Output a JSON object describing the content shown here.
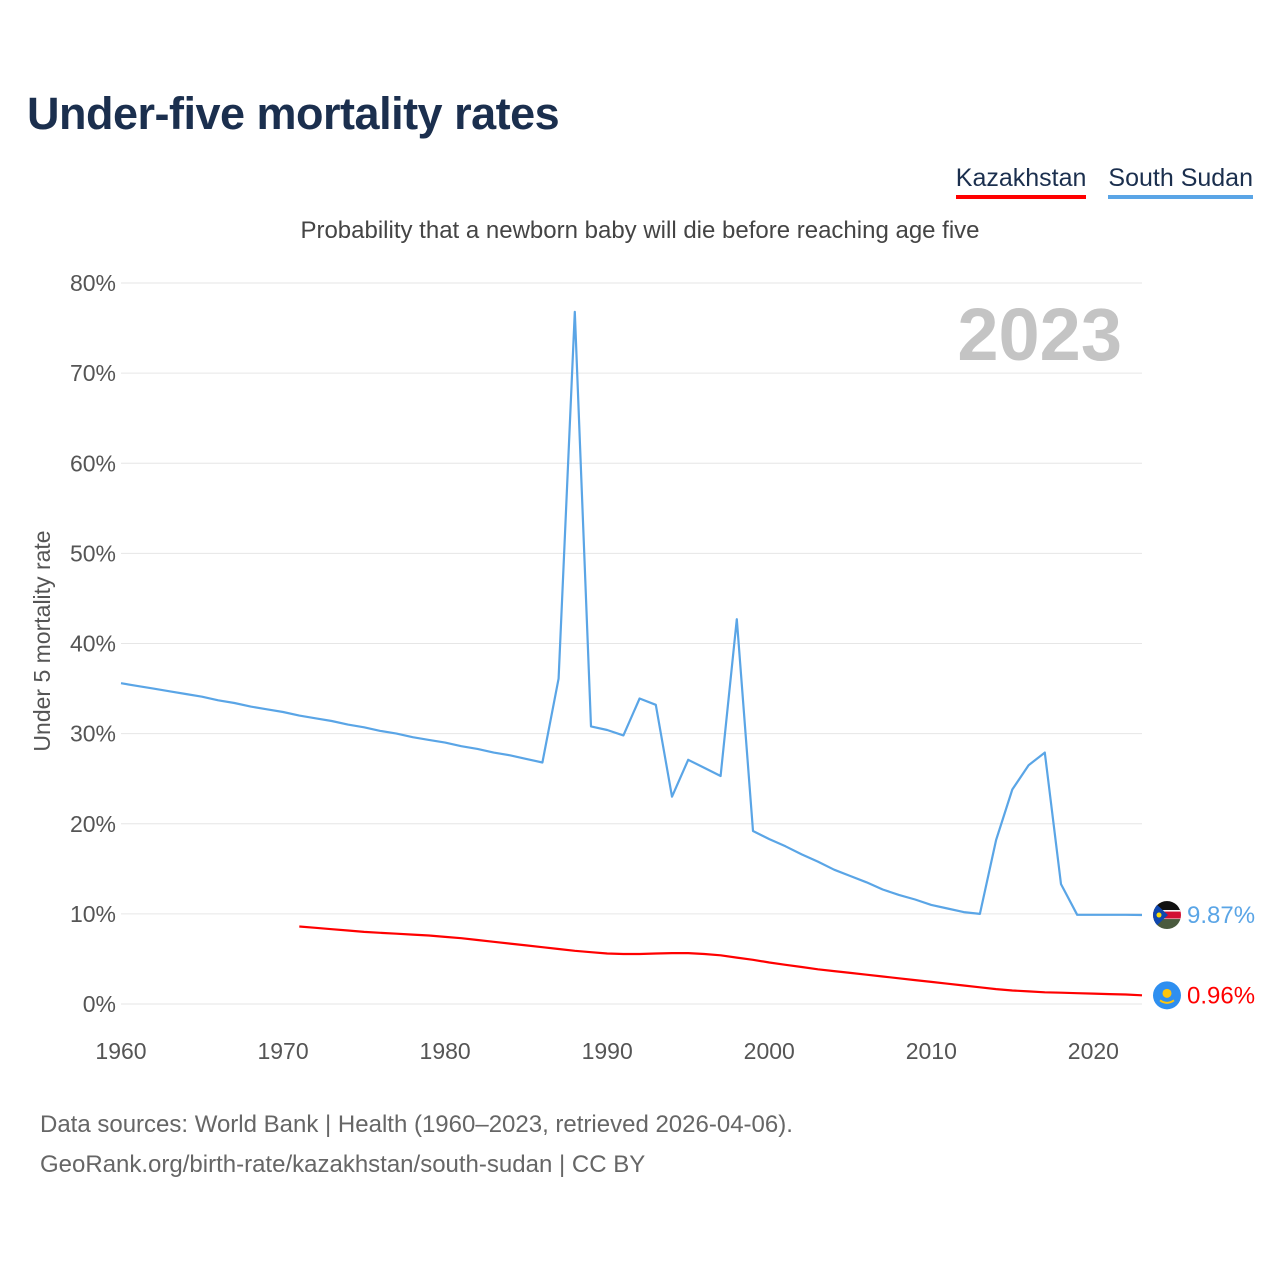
{
  "title": "Under-five mortality rates",
  "subtitle": "Probability that a newborn baby will die before reaching age five",
  "legend": [
    {
      "name": "Kazakhstan",
      "color": "#ff0000"
    },
    {
      "name": "South Sudan",
      "color": "#5aa5e6"
    }
  ],
  "footer": {
    "line1": "Data sources: World Bank | Health (1960–2023, retrieved 2026-04-06).",
    "line2": "GeoRank.org/birth-rate/kazakhstan/south-sudan | CC BY"
  },
  "chart_data": {
    "type": "line",
    "title": "Under-five mortality rates",
    "ylabel": "Under 5 mortality rate",
    "xlabel": "",
    "xlim": [
      1960,
      2023
    ],
    "ylim": [
      0,
      80
    ],
    "y_ticks": [
      0,
      10,
      20,
      30,
      40,
      50,
      60,
      70,
      80
    ],
    "y_tick_labels": [
      "0%",
      "10%",
      "20%",
      "30%",
      "40%",
      "50%",
      "60%",
      "70%",
      "80%"
    ],
    "x_ticks": [
      1960,
      1970,
      1980,
      1990,
      2000,
      2010,
      2020
    ],
    "x_tick_labels": [
      "1960",
      "1970",
      "1980",
      "1990",
      "2000",
      "2010",
      "2020"
    ],
    "year_label": "2023",
    "grid": true,
    "series": [
      {
        "name": "South Sudan",
        "color": "#5aa5e6",
        "end_label": "9.87%",
        "flag": "south-sudan-flag",
        "x": [
          1960,
          1961,
          1962,
          1963,
          1964,
          1965,
          1966,
          1967,
          1968,
          1969,
          1970,
          1971,
          1972,
          1973,
          1974,
          1975,
          1976,
          1977,
          1978,
          1979,
          1980,
          1981,
          1982,
          1983,
          1984,
          1985,
          1986,
          1987,
          1988,
          1989,
          1990,
          1991,
          1992,
          1993,
          1994,
          1995,
          1996,
          1997,
          1998,
          1999,
          2000,
          2001,
          2002,
          2003,
          2004,
          2005,
          2006,
          2007,
          2008,
          2009,
          2010,
          2011,
          2012,
          2013,
          2014,
          2015,
          2016,
          2017,
          2018,
          2019,
          2020,
          2021,
          2022,
          2023
        ],
        "values": [
          35.6,
          35.3,
          35.0,
          34.7,
          34.4,
          34.1,
          33.7,
          33.4,
          33.0,
          32.7,
          32.4,
          32.0,
          31.7,
          31.4,
          31.0,
          30.7,
          30.3,
          30.0,
          29.6,
          29.3,
          29.0,
          28.6,
          28.3,
          27.9,
          27.6,
          27.2,
          26.8,
          36.1,
          76.8,
          30.8,
          30.4,
          29.8,
          33.9,
          33.2,
          23.0,
          27.1,
          26.2,
          25.3,
          42.7,
          19.2,
          18.3,
          17.5,
          16.6,
          15.8,
          14.9,
          14.2,
          13.5,
          12.7,
          12.1,
          11.6,
          11.0,
          10.6,
          10.2,
          10.0,
          18.2,
          23.8,
          26.5,
          27.9,
          13.3,
          9.9,
          9.9,
          9.9,
          9.9,
          9.87
        ]
      },
      {
        "name": "Kazakhstan",
        "color": "#ff0000",
        "end_label": "0.96%",
        "flag": "kazakhstan-flag",
        "x": [
          1971,
          1972,
          1973,
          1974,
          1975,
          1976,
          1977,
          1978,
          1979,
          1980,
          1981,
          1982,
          1983,
          1984,
          1985,
          1986,
          1987,
          1988,
          1989,
          1990,
          1991,
          1992,
          1993,
          1994,
          1995,
          1996,
          1997,
          1998,
          1999,
          2000,
          2001,
          2002,
          2003,
          2004,
          2005,
          2006,
          2007,
          2008,
          2009,
          2010,
          2011,
          2012,
          2013,
          2014,
          2015,
          2016,
          2017,
          2018,
          2019,
          2020,
          2021,
          2022,
          2023
        ],
        "values": [
          8.6,
          8.45,
          8.3,
          8.15,
          8.0,
          7.9,
          7.8,
          7.7,
          7.6,
          7.45,
          7.3,
          7.1,
          6.9,
          6.7,
          6.5,
          6.3,
          6.1,
          5.9,
          5.75,
          5.6,
          5.55,
          5.55,
          5.6,
          5.65,
          5.65,
          5.55,
          5.4,
          5.15,
          4.9,
          4.6,
          4.35,
          4.1,
          3.85,
          3.65,
          3.45,
          3.25,
          3.05,
          2.85,
          2.65,
          2.45,
          2.25,
          2.05,
          1.85,
          1.65,
          1.5,
          1.4,
          1.3,
          1.25,
          1.2,
          1.15,
          1.1,
          1.05,
          0.96
        ]
      }
    ]
  }
}
